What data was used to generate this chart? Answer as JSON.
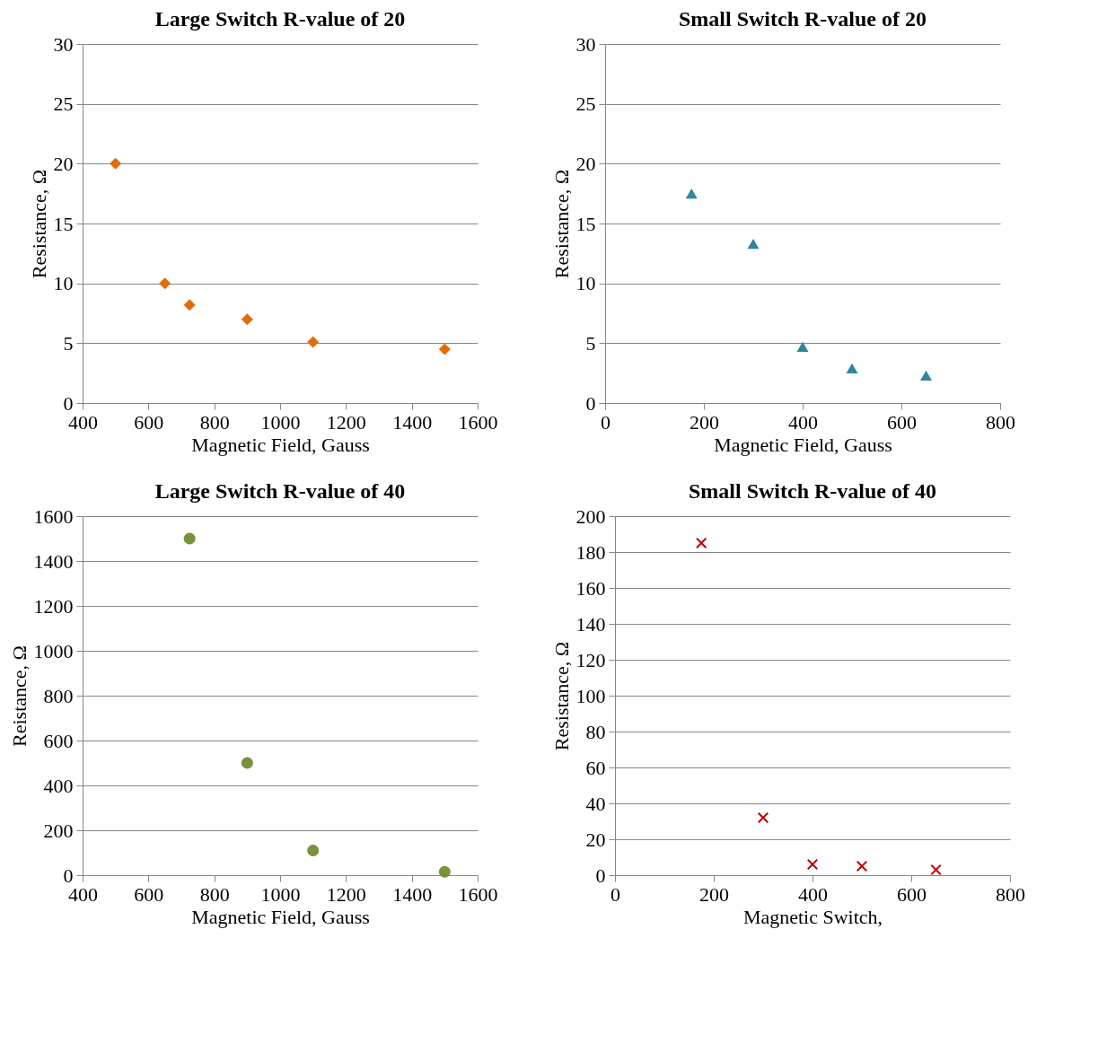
{
  "chart_data": [
    {
      "type": "scatter",
      "title": "Large Switch R-value of 20",
      "xlabel": "Magnetic Field, Gauss",
      "ylabel": "Resistance, Ω",
      "marker": "diamond",
      "grid": "y",
      "x": [
        500,
        650,
        725,
        900,
        1100,
        1500
      ],
      "series": [
        {
          "color": "#e36c09",
          "values": [
            20,
            10,
            8.2,
            7,
            5.1,
            4.5
          ]
        }
      ],
      "xlim": [
        400,
        1600
      ],
      "xticks": [
        400,
        600,
        800,
        1000,
        1200,
        1400,
        1600
      ],
      "ylim": [
        0,
        30
      ],
      "yticks": [
        0,
        5,
        10,
        15,
        20,
        25,
        30
      ]
    },
    {
      "type": "scatter",
      "title": "Small Switch R-value of 20",
      "xlabel": "Magnetic Field, Gauss",
      "ylabel": "Resistance, Ω",
      "marker": "triangle",
      "grid": "y",
      "x": [
        175,
        300,
        400,
        500,
        650
      ],
      "series": [
        {
          "color": "#31859c",
          "values": [
            17.5,
            13.3,
            4.7,
            2.9,
            2.3
          ]
        }
      ],
      "xlim": [
        0,
        800
      ],
      "xticks": [
        0,
        200,
        400,
        600,
        800
      ],
      "ylim": [
        0,
        30
      ],
      "yticks": [
        0,
        5,
        10,
        15,
        20,
        25,
        30
      ]
    },
    {
      "type": "scatter",
      "title": "Large Switch R-value of 40",
      "xlabel": "Magnetic Field, Gauss",
      "ylabel": "Reistance, Ω",
      "marker": "circle",
      "grid": "y",
      "x": [
        725,
        900,
        1100,
        1500
      ],
      "series": [
        {
          "color": "#77933c",
          "values": [
            1500,
            500,
            110,
            15
          ]
        }
      ],
      "xlim": [
        400,
        1600
      ],
      "xticks": [
        400,
        600,
        800,
        1000,
        1200,
        1400,
        1600
      ],
      "ylim": [
        0,
        1600
      ],
      "yticks": [
        0,
        200,
        400,
        600,
        800,
        1000,
        1200,
        1400,
        1600
      ]
    },
    {
      "type": "scatter",
      "title": "Small Switch R-value of 40",
      "xlabel": "Magnetic Switch,",
      "ylabel": "Resistance, Ω",
      "marker": "cross",
      "grid": "y",
      "x": [
        175,
        300,
        400,
        500,
        650
      ],
      "series": [
        {
          "color": "#c00000",
          "values": [
            185,
            32,
            6,
            5,
            3
          ]
        }
      ],
      "xlim": [
        0,
        800
      ],
      "xticks": [
        0,
        200,
        400,
        600,
        800
      ],
      "ylim": [
        0,
        200
      ],
      "yticks": [
        0,
        20,
        40,
        60,
        80,
        100,
        120,
        140,
        160,
        180,
        200
      ]
    }
  ]
}
